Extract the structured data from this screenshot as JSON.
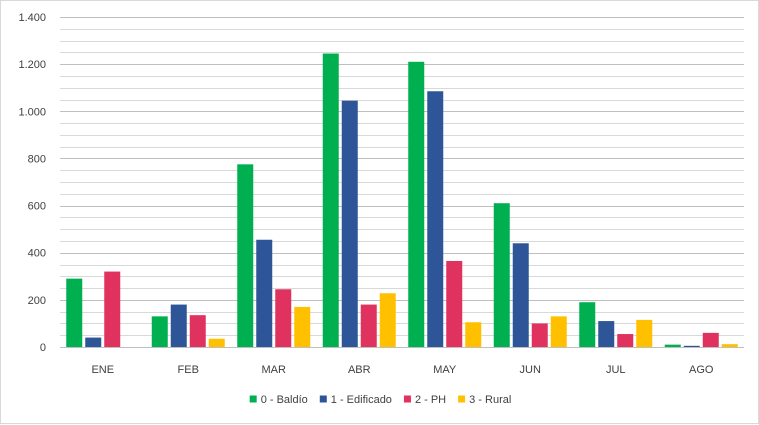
{
  "chart_data": {
    "type": "bar",
    "title": "",
    "xlabel": "",
    "ylabel": "",
    "ylim": [
      0,
      1400
    ],
    "y_ticks": [
      0,
      200,
      400,
      600,
      800,
      1000,
      1200,
      1400
    ],
    "y_tick_labels": [
      "0",
      "200",
      "400",
      "600",
      "800",
      "1.000",
      "1.200",
      "1.400"
    ],
    "minor_gridline_step": 50,
    "grid": true,
    "legend_position": "bottom",
    "categories": [
      "ENE",
      "FEB",
      "MAR",
      "ABR",
      "MAY",
      "JUN",
      "JUL",
      "AGO"
    ],
    "series": [
      {
        "name": "0 - Baldío",
        "color": "#00b050",
        "values": [
          290,
          130,
          775,
          1245,
          1210,
          610,
          190,
          10
        ]
      },
      {
        "name": "1 - Edificado",
        "color": "#2e5597",
        "values": [
          40,
          180,
          455,
          1045,
          1085,
          440,
          110,
          5
        ]
      },
      {
        "name": "2 - PH",
        "color": "#e0325f",
        "values": [
          320,
          135,
          245,
          180,
          365,
          100,
          55,
          60
        ]
      },
      {
        "name": "3 - Rural",
        "color": "#ffc000",
        "values": [
          0,
          35,
          170,
          228,
          105,
          130,
          115,
          12
        ]
      }
    ]
  }
}
